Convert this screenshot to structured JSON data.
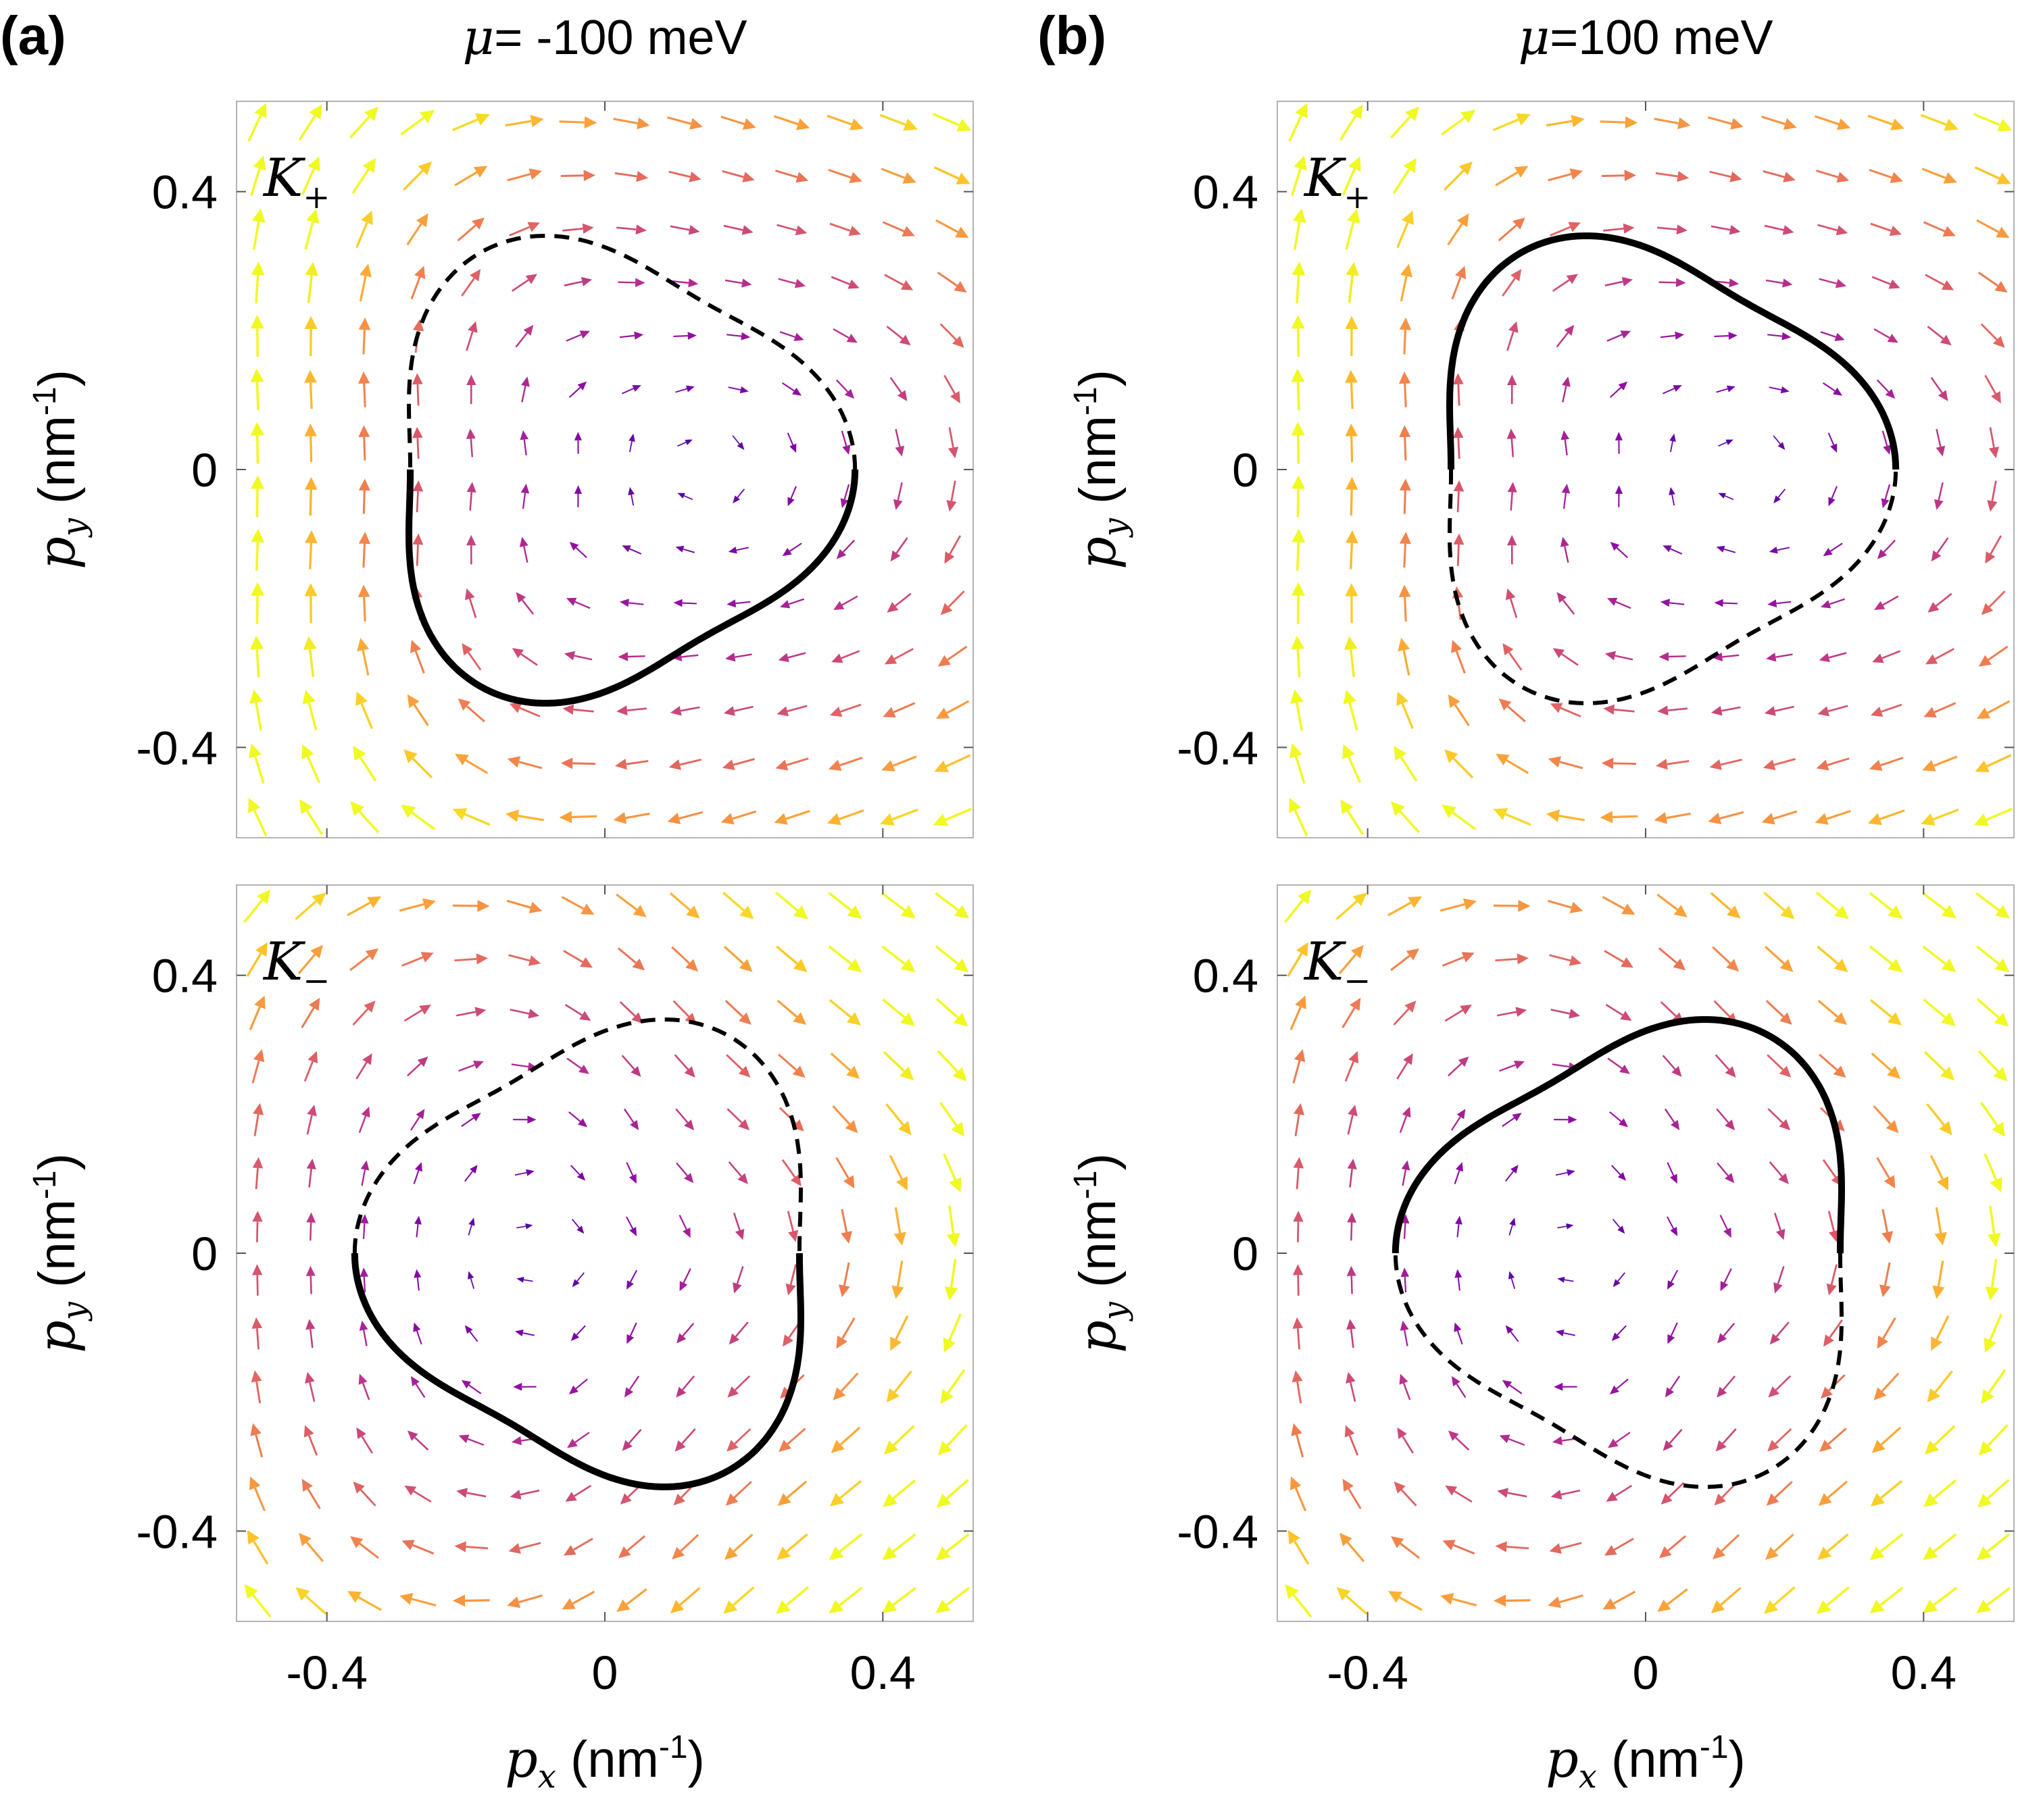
{
  "figure": {
    "columns": [
      {
        "letter": "(a)",
        "mu_symbol": "μ",
        "mu_text": "= -100 meV",
        "mu": -100
      },
      {
        "letter": "(b)",
        "mu_symbol": "μ",
        "mu_text": "=100 meV",
        "mu": 100
      }
    ],
    "rows": [
      {
        "valley": "K",
        "valley_sub": "+"
      },
      {
        "valley": "K",
        "valley_sub": "−"
      }
    ],
    "axes": {
      "x_tick_labels": [
        "-0.4",
        "0",
        "0.4"
      ],
      "y_tick_labels": [
        "0.4",
        "0",
        "-0.4"
      ],
      "xlabel_var": "p",
      "xlabel_sub": "x",
      "xlabel_unit": " (nm",
      "xlabel_exp": "-1",
      "xlabel_close": ")",
      "ylabel_var": "p",
      "ylabel_sub": "y",
      "ylabel_unit": " (nm",
      "ylabel_exp": "-1",
      "ylabel_close": ")"
    }
  },
  "chart_data": [
    {
      "type": "scatter",
      "subtype": "quiver-with-fermi-contour",
      "panel": "(a) top",
      "title": "μ= -100 meV",
      "valley": "K+",
      "xlabel": "p_x (nm-1)",
      "ylabel": "p_y (nm-1)",
      "xlim": [
        -0.53,
        0.53
      ],
      "ylim": [
        -0.53,
        0.53
      ],
      "xticks": [
        -0.4,
        0,
        0.4
      ],
      "yticks": [
        -0.4,
        0,
        0.4
      ],
      "grid": false,
      "field": {
        "grid_x": [
          -0.5,
          -0.5
        ],
        "grid_step": 0.0769,
        "n": 14,
        "rotation": "clockwise",
        "colormap": "plasma (dark blue center → yellow edge)"
      },
      "contour": {
        "shape": "trigonal",
        "tip_direction": "+x",
        "r_tip": 0.36,
        "r_flat": 0.28,
        "solid_half": "lower",
        "dashed_half": "upper"
      }
    },
    {
      "type": "scatter",
      "subtype": "quiver-with-fermi-contour",
      "panel": "(a) bottom",
      "title": "μ= -100 meV",
      "valley": "K−",
      "xlabel": "p_x (nm-1)",
      "ylabel": "p_y (nm-1)",
      "xlim": [
        -0.53,
        0.53
      ],
      "ylim": [
        -0.53,
        0.53
      ],
      "xticks": [
        -0.4,
        0,
        0.4
      ],
      "yticks": [
        -0.4,
        0,
        0.4
      ],
      "grid": false,
      "field": {
        "n": 14,
        "rotation": "clockwise",
        "colormap": "plasma"
      },
      "contour": {
        "shape": "trigonal",
        "tip_direction": "-x",
        "r_tip": 0.36,
        "r_flat": 0.28,
        "solid_half": "lower",
        "dashed_half": "upper"
      }
    },
    {
      "type": "scatter",
      "subtype": "quiver-with-fermi-contour",
      "panel": "(b) top",
      "title": "μ=100 meV",
      "valley": "K+",
      "xlabel": "p_x (nm-1)",
      "ylabel": "p_y (nm-1)",
      "xlim": [
        -0.53,
        0.53
      ],
      "ylim": [
        -0.53,
        0.53
      ],
      "xticks": [
        -0.4,
        0,
        0.4
      ],
      "yticks": [
        -0.4,
        0,
        0.4
      ],
      "grid": false,
      "field": {
        "n": 14,
        "rotation": "clockwise",
        "colormap": "plasma"
      },
      "contour": {
        "shape": "trigonal",
        "tip_direction": "+x",
        "r_tip": 0.36,
        "r_flat": 0.28,
        "solid_half": "upper",
        "dashed_half": "lower"
      }
    },
    {
      "type": "scatter",
      "subtype": "quiver-with-fermi-contour",
      "panel": "(b) bottom",
      "title": "μ=100 meV",
      "valley": "K−",
      "xlabel": "p_x (nm-1)",
      "ylabel": "p_y (nm-1)",
      "xlim": [
        -0.53,
        0.53
      ],
      "ylim": [
        -0.53,
        0.53
      ],
      "xticks": [
        -0.4,
        0,
        0.4
      ],
      "yticks": [
        -0.4,
        0,
        0.4
      ],
      "grid": false,
      "field": {
        "n": 14,
        "rotation": "clockwise",
        "colormap": "plasma"
      },
      "contour": {
        "shape": "trigonal",
        "tip_direction": "-x",
        "r_tip": 0.36,
        "r_flat": 0.28,
        "solid_half": "upper",
        "dashed_half": "lower"
      }
    }
  ]
}
